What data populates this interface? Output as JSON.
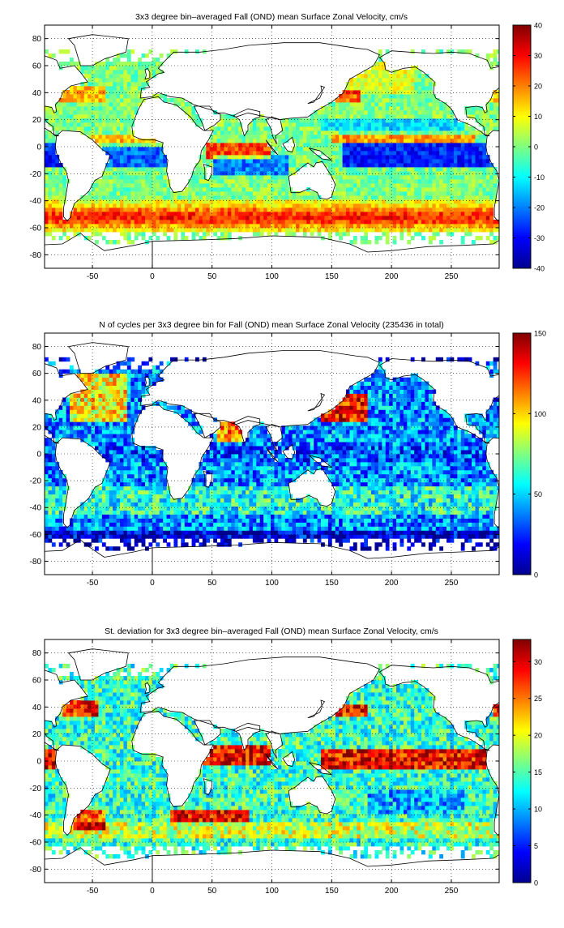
{
  "figure": {
    "colormap": "jet",
    "colormap_stops": [
      "#00008f",
      "#0000ff",
      "#0080ff",
      "#00ffff",
      "#80ff80",
      "#ffff00",
      "#ff8000",
      "#ff0000",
      "#800000"
    ],
    "land_color": "#ffffff",
    "coast_color": "#000000"
  },
  "chart_data": [
    {
      "type": "heatmap",
      "title": "3x3 degree bin–averaged Fall (OND) mean Surface Zonal Velocity, cm/s",
      "xlabel": "",
      "ylabel": "",
      "xlim": [
        -90,
        290
      ],
      "ylim": [
        -90,
        90
      ],
      "x_ticks": [
        -50,
        0,
        50,
        100,
        150,
        200,
        250
      ],
      "y_ticks": [
        -80,
        -60,
        -40,
        -20,
        0,
        20,
        40,
        60,
        80
      ],
      "grid": true,
      "grid_style": "dotted",
      "bin_size_deg": 3,
      "colorbar": {
        "min": -40,
        "max": 40,
        "ticks": [
          -40,
          -30,
          -20,
          -10,
          0,
          10,
          20,
          30,
          40
        ]
      },
      "field": "zonal_velocity_mean"
    },
    {
      "type": "heatmap",
      "title": "N of cycles per 3x3 degree bin for Fall (OND) mean Surface Zonal Velocity (235436 in total)",
      "xlabel": "",
      "ylabel": "",
      "xlim": [
        -90,
        290
      ],
      "ylim": [
        -90,
        90
      ],
      "x_ticks": [
        -50,
        0,
        50,
        100,
        150,
        200,
        250
      ],
      "y_ticks": [
        -80,
        -60,
        -40,
        -20,
        0,
        20,
        40,
        60,
        80
      ],
      "grid": true,
      "grid_style": "dotted",
      "bin_size_deg": 3,
      "colorbar": {
        "min": 0,
        "max": 150,
        "ticks": [
          0,
          50,
          100,
          150
        ]
      },
      "field": "cycle_count"
    },
    {
      "type": "heatmap",
      "title": "St. deviation for 3x3 degree bin–averaged Fall (OND) mean Surface Zonal Velocity, cm/s",
      "xlabel": "",
      "ylabel": "",
      "xlim": [
        -90,
        290
      ],
      "ylim": [
        -90,
        90
      ],
      "x_ticks": [
        -50,
        0,
        50,
        100,
        150,
        200,
        250
      ],
      "y_ticks": [
        -80,
        -60,
        -40,
        -20,
        0,
        20,
        40,
        60,
        80
      ],
      "grid": true,
      "grid_style": "dotted",
      "bin_size_deg": 3,
      "colorbar": {
        "min": 0,
        "max": 33,
        "ticks": [
          0,
          5,
          10,
          15,
          20,
          25,
          30
        ]
      },
      "field": "zonal_velocity_std"
    }
  ]
}
